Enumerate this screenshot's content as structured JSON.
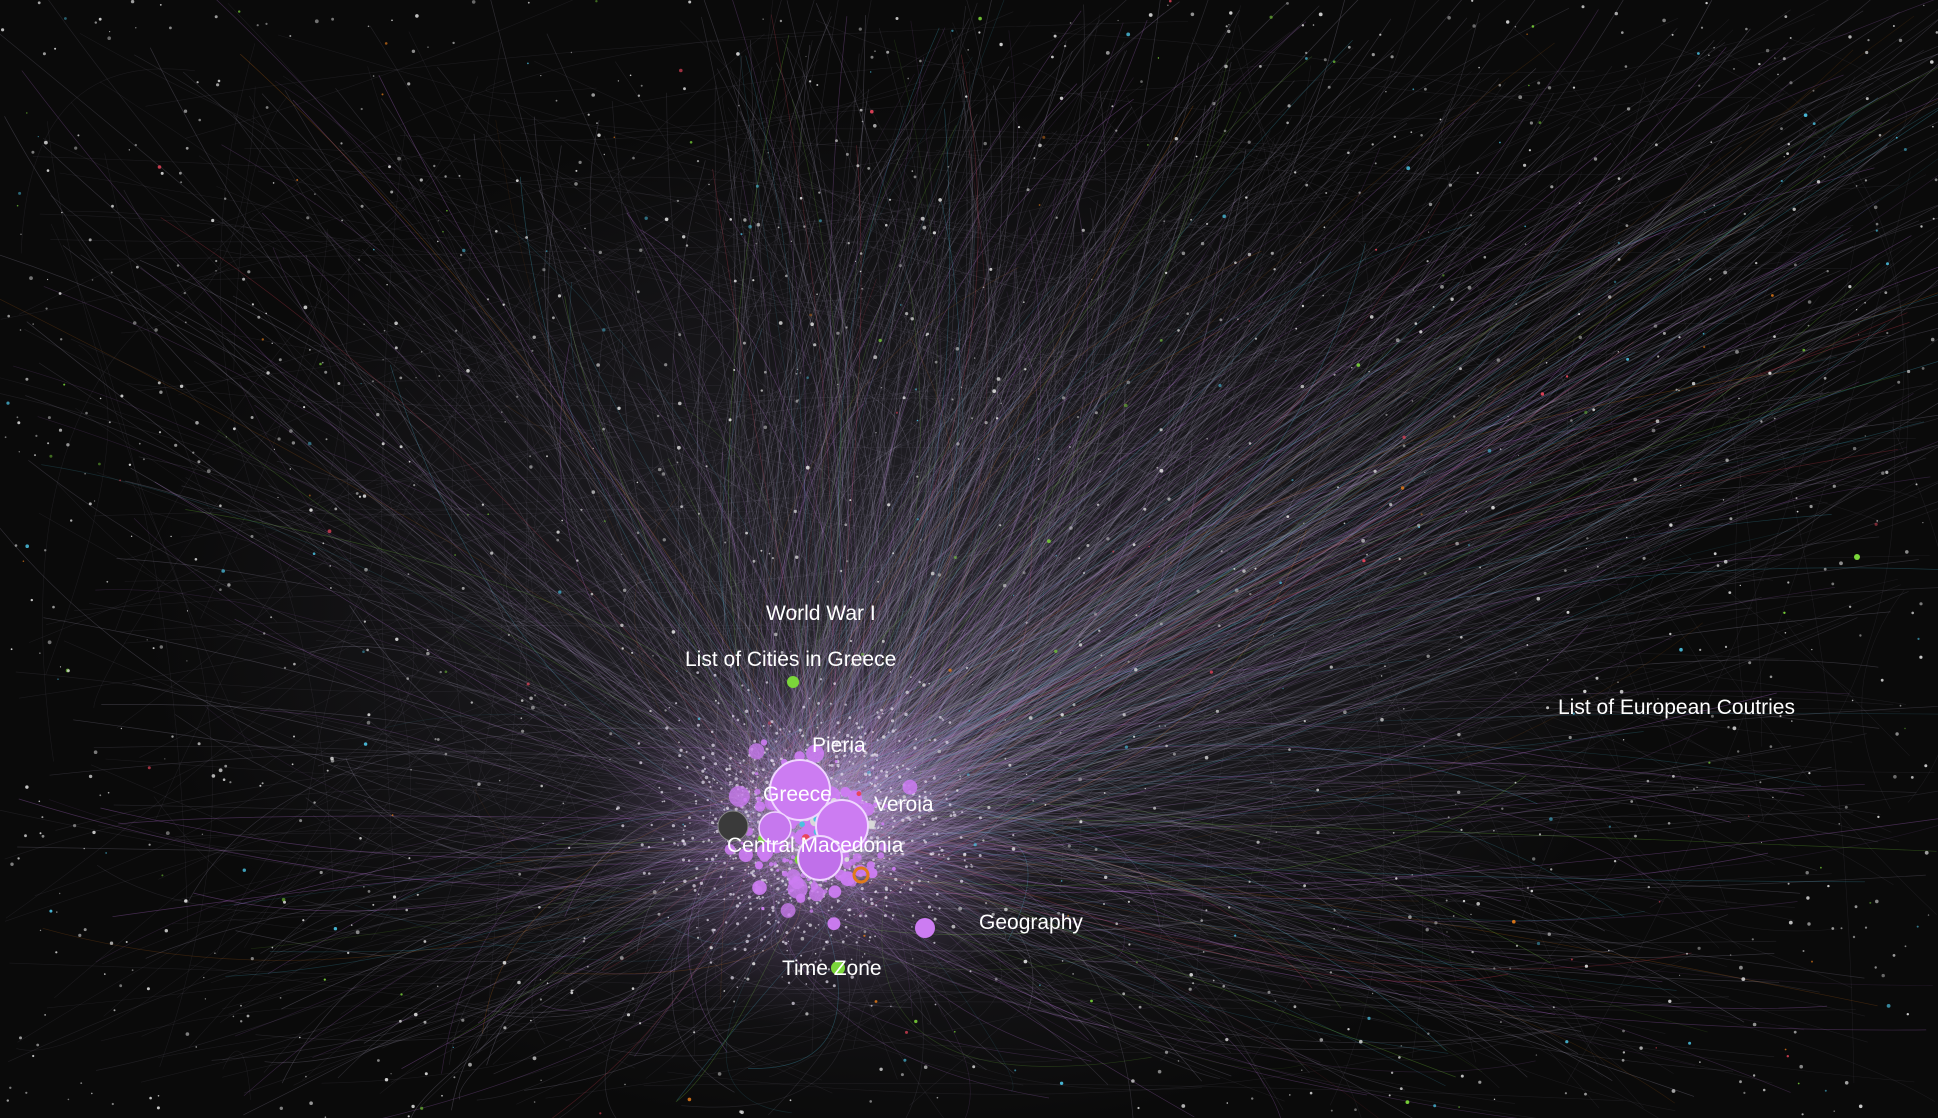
{
  "graph": {
    "background_color": "#0a0a0a",
    "edge_color": "#9a94ad",
    "cluster_color": "#cc7cf2",
    "accent_colors": [
      "#9a3ee8",
      "#4bc0e0",
      "#7bd63a",
      "#e8455c",
      "#e07a1a",
      "#d8d8d8"
    ],
    "labels": [
      {
        "id": "world-war-i",
        "text": "World War I"
      },
      {
        "id": "list-of-cities-in-greece",
        "text": "List of Cities in Greece"
      },
      {
        "id": "pieria",
        "text": "Pieria"
      },
      {
        "id": "greece",
        "text": "Greece"
      },
      {
        "id": "veroia",
        "text": "Veroia"
      },
      {
        "id": "central-macedonia",
        "text": "Central Macedonia"
      },
      {
        "id": "geography",
        "text": "Geography"
      },
      {
        "id": "time-zone",
        "text": "Time Zone"
      },
      {
        "id": "list-of-european-coutries",
        "text": "List of European Coutries"
      }
    ]
  }
}
